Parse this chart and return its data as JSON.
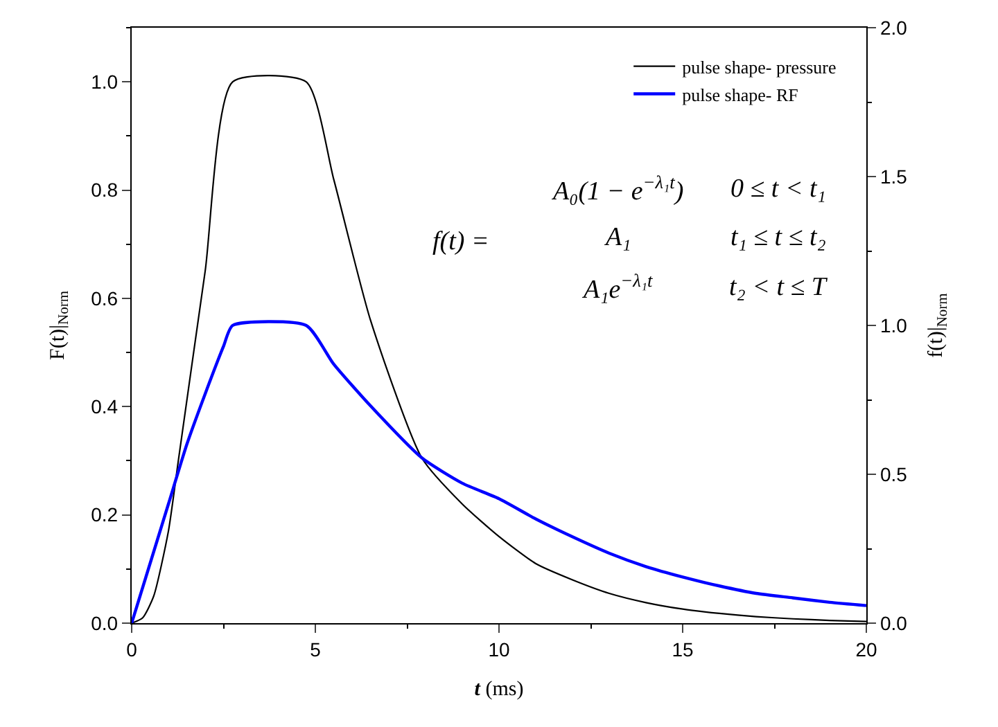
{
  "chart_data": {
    "type": "line",
    "xlabel": "t (ms)",
    "ylabel": "F(t)|$_{Norm}$",
    "y2label": "f(t)|$_{Norm}$",
    "xlim": [
      0,
      20
    ],
    "xticks": [
      0,
      5,
      10,
      15,
      20
    ],
    "ylim": [
      0,
      1.1
    ],
    "yticks": [
      {
        "value": 0,
        "label": "0.0"
      },
      0.2,
      0.4,
      0.6,
      0.8,
      {
        "value": 1,
        "label": "1.0"
      }
    ],
    "y2lim": [
      0,
      2.0
    ],
    "y2ticks": [
      {
        "value": 0,
        "label": "0.0"
      },
      0.5,
      {
        "value": 1,
        "label": "1.0"
      },
      1.5,
      {
        "value": 2,
        "label": "2.0"
      }
    ],
    "legend": "top right",
    "marker": "none",
    "line_style": "solid",
    "series": [
      {
        "name": "pulse shape- pressure",
        "color": "#000000",
        "axis": "y",
        "x": [
          0,
          0.3,
          0.6,
          1.0,
          1.27,
          2.0,
          2.75,
          4.75,
          5.5,
          6.5,
          7.9,
          9,
          10,
          11,
          12,
          13,
          14,
          15,
          16,
          17,
          18,
          19,
          20
        ],
        "values": [
          0,
          0.01,
          0.05,
          0.17,
          0.3,
          0.65,
          1.0,
          1.0,
          0.82,
          0.56,
          0.305,
          0.22,
          0.16,
          0.11,
          0.08,
          0.055,
          0.038,
          0.026,
          0.018,
          0.012,
          0.008,
          0.005,
          0.003
        ]
      },
      {
        "name": "pulse shape- RF",
        "color": "#0000ff",
        "axis": "y2",
        "x": [
          0,
          0.5,
          1.0,
          1.5,
          2.0,
          2.5,
          2.75,
          4.75,
          5.5,
          6.5,
          7.9,
          9,
          10,
          11,
          12,
          13,
          14,
          15,
          16,
          17,
          18,
          19,
          20
        ],
        "values": [
          0,
          0.2,
          0.4,
          0.6,
          0.77,
          0.93,
          1.0,
          1.0,
          0.87,
          0.73,
          0.555,
          0.47,
          0.418,
          0.35,
          0.29,
          0.235,
          0.19,
          0.155,
          0.125,
          0.1,
          0.085,
          0.07,
          0.059
        ]
      }
    ],
    "annotations": [
      "f(t) =",
      "A₀(1 − e$^{−λ₁t}$)",
      "0 ≤ t < t₁",
      "A₁",
      "t₁ ≤ t ≤ t₂",
      "A₁e$^{−λ₁t}$",
      "t₂ < t ≤ T"
    ]
  }
}
